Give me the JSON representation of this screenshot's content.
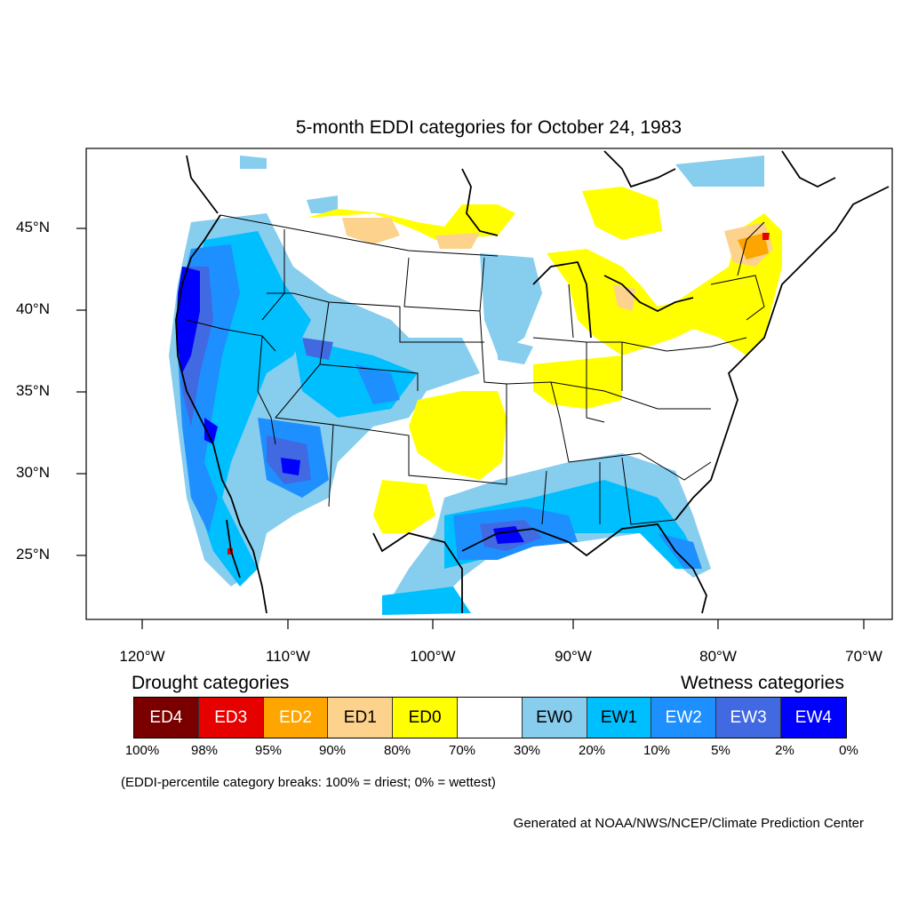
{
  "title": "5-month EDDI categories for October 24, 1983",
  "lat_labels": [
    "45°N",
    "40°N",
    "35°N",
    "30°N",
    "25°N"
  ],
  "lon_labels": [
    "120°W",
    "110°W",
    "100°W",
    "90°W",
    "80°W",
    "70°W"
  ],
  "legend": {
    "drought_title": "Drought categories",
    "wetness_title": "Wetness categories",
    "categories": [
      {
        "label": "ED4",
        "color": "#7a0000",
        "text_color": "#ffffff"
      },
      {
        "label": "ED3",
        "color": "#e60000",
        "text_color": "#ffffff"
      },
      {
        "label": "ED2",
        "color": "#ffa500",
        "text_color": "#ffffff"
      },
      {
        "label": "ED1",
        "color": "#fcd28d",
        "text_color": "#000000"
      },
      {
        "label": "ED0",
        "color": "#ffff00",
        "text_color": "#000000"
      },
      {
        "label": "",
        "color": "#ffffff",
        "text_color": "#000000"
      },
      {
        "label": "EW0",
        "color": "#87cdee",
        "text_color": "#000000"
      },
      {
        "label": "EW1",
        "color": "#00bfff",
        "text_color": "#000000"
      },
      {
        "label": "EW2",
        "color": "#1e8fff",
        "text_color": "#ffffff"
      },
      {
        "label": "EW3",
        "color": "#4169e1",
        "text_color": "#ffffff"
      },
      {
        "label": "EW4",
        "color": "#0000ff",
        "text_color": "#ffffff"
      }
    ],
    "percentiles": [
      "100%",
      "98%",
      "95%",
      "90%",
      "80%",
      "70%",
      "30%",
      "20%",
      "10%",
      "5%",
      "2%",
      "0%"
    ]
  },
  "note": "(EDDI-percentile category breaks: 100% = driest; 0% = wettest)",
  "credit": "Generated at NOAA/NWS/NCEP/Climate Prediction Center"
}
